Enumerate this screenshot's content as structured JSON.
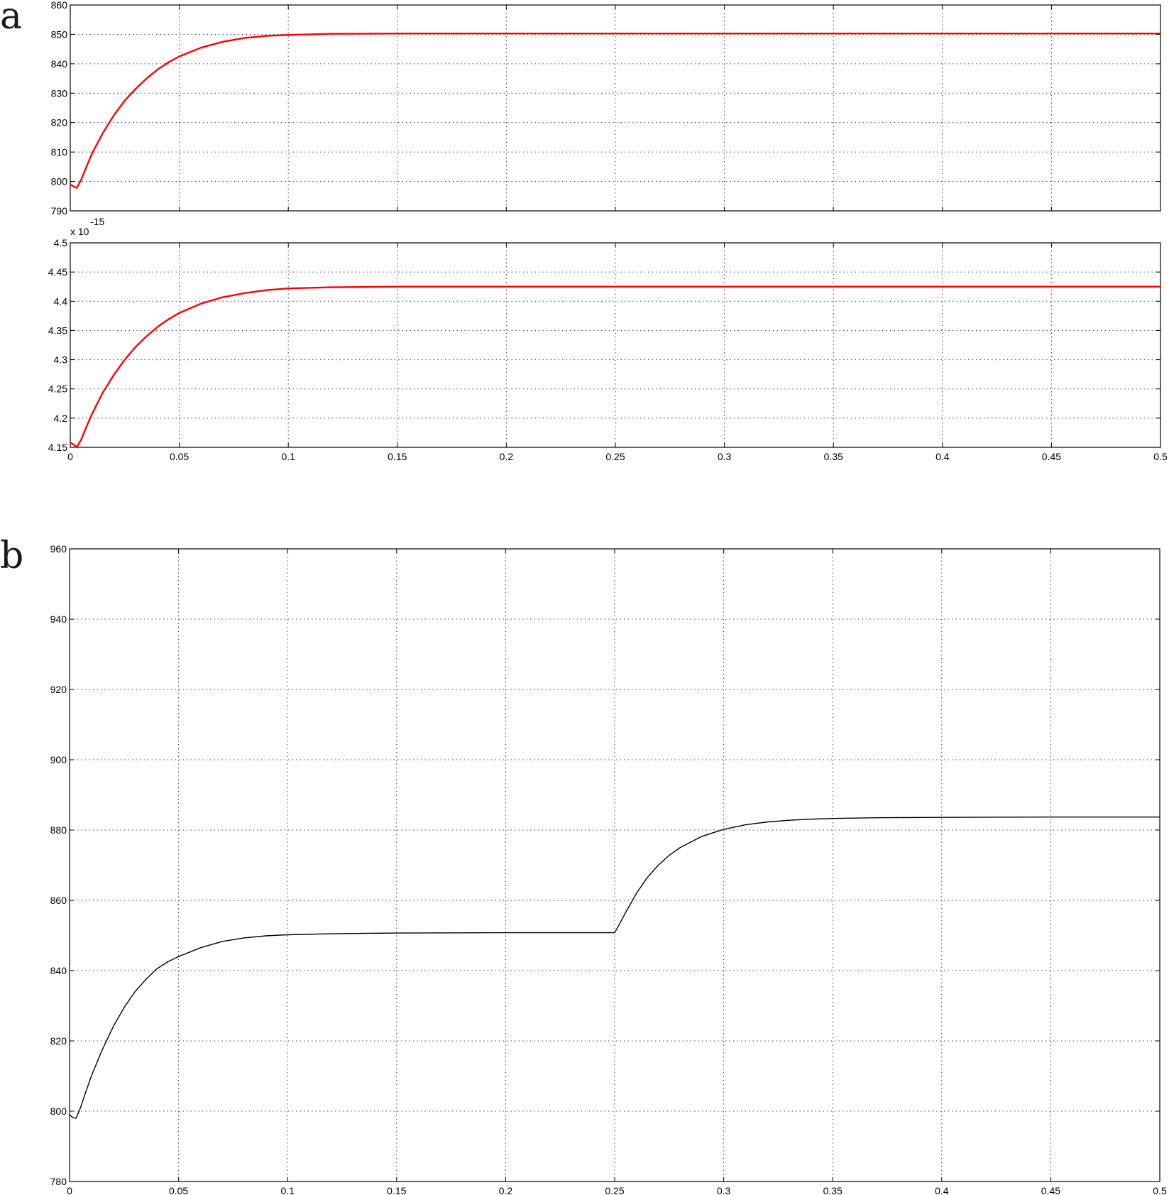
{
  "panel_labels": {
    "a": "a",
    "b": "b"
  },
  "chart_data": [
    {
      "id": "a-top",
      "type": "line",
      "title": "",
      "xlabel": "",
      "ylabel": "",
      "xlim": [
        0,
        0.5
      ],
      "ylim": [
        790,
        860
      ],
      "xticks": [
        0,
        0.05,
        0.1,
        0.15,
        0.2,
        0.25,
        0.3,
        0.35,
        0.4,
        0.45,
        0.5
      ],
      "show_xtick_labels": false,
      "yticks": [
        790,
        800,
        810,
        820,
        830,
        840,
        850,
        860
      ],
      "ytick_labels": [
        "790",
        "800",
        "810",
        "820",
        "830",
        "840",
        "850",
        "860"
      ],
      "grid": true,
      "color": "#ff0000",
      "series": [
        {
          "x": [
            0,
            0.0015,
            0.003,
            0.005,
            0.008,
            0.01,
            0.015,
            0.02,
            0.025,
            0.03,
            0.035,
            0.04,
            0.045,
            0.05,
            0.06,
            0.07,
            0.08,
            0.09,
            0.1,
            0.12,
            0.15,
            0.2,
            0.25,
            0.3,
            0.35,
            0.4,
            0.45,
            0.5
          ],
          "y": [
            799.0,
            798.3,
            797.8,
            800.5,
            806.0,
            809.5,
            816.5,
            822.5,
            827.5,
            831.5,
            835.0,
            838.0,
            840.5,
            842.5,
            845.5,
            847.5,
            848.8,
            849.5,
            849.8,
            850.2,
            850.3,
            850.3,
            850.3,
            850.3,
            850.3,
            850.3,
            850.3,
            850.3
          ]
        }
      ]
    },
    {
      "id": "a-bottom",
      "type": "line",
      "title": "",
      "xlabel": "",
      "ylabel": "",
      "exponent_label": {
        "base": "x 10",
        "power": "-15"
      },
      "xlim": [
        0,
        0.5
      ],
      "ylim": [
        4.15,
        4.5
      ],
      "xticks": [
        0,
        0.05,
        0.1,
        0.15,
        0.2,
        0.25,
        0.3,
        0.35,
        0.4,
        0.45,
        0.5
      ],
      "xtick_labels": [
        "0",
        "0.05",
        "0.1",
        "0.15",
        "0.2",
        "0.25",
        "0.3",
        "0.35",
        "0.4",
        "0.45",
        "0.5"
      ],
      "yticks": [
        4.15,
        4.2,
        4.25,
        4.3,
        4.35,
        4.4,
        4.45,
        4.5
      ],
      "ytick_labels": [
        "4.15",
        "4.2",
        "4.25",
        "4.3",
        "4.35",
        "4.4",
        "4.45",
        "4.5"
      ],
      "grid": true,
      "color": "#ff0000",
      "series": [
        {
          "x": [
            0,
            0.0015,
            0.003,
            0.005,
            0.008,
            0.01,
            0.015,
            0.02,
            0.025,
            0.03,
            0.035,
            0.04,
            0.045,
            0.05,
            0.06,
            0.07,
            0.08,
            0.09,
            0.1,
            0.12,
            0.15,
            0.2,
            0.25,
            0.3,
            0.35,
            0.4,
            0.45,
            0.5
          ],
          "y": [
            4.158,
            4.155,
            4.15,
            4.163,
            4.19,
            4.207,
            4.244,
            4.274,
            4.3,
            4.322,
            4.34,
            4.356,
            4.369,
            4.38,
            4.396,
            4.407,
            4.414,
            4.419,
            4.422,
            4.424,
            4.425,
            4.425,
            4.425,
            4.425,
            4.425,
            4.425,
            4.425,
            4.425
          ]
        }
      ]
    },
    {
      "id": "b",
      "type": "line",
      "title": "",
      "xlabel": "",
      "ylabel": "",
      "xlim": [
        0,
        0.5
      ],
      "ylim": [
        780,
        960
      ],
      "xticks": [
        0,
        0.05,
        0.1,
        0.15,
        0.2,
        0.25,
        0.3,
        0.35,
        0.4,
        0.45,
        0.5
      ],
      "xtick_labels": [
        "0",
        "0.05",
        "0.1",
        "0.15",
        "0.2",
        "0.25",
        "0.3",
        "0.35",
        "0.4",
        "0.45",
        "0.5"
      ],
      "yticks": [
        780,
        800,
        820,
        840,
        860,
        880,
        900,
        920,
        940,
        960
      ],
      "ytick_labels": [
        "780",
        "800",
        "820",
        "840",
        "860",
        "880",
        "900",
        "920",
        "940",
        "960"
      ],
      "grid": true,
      "color": "#000000",
      "series": [
        {
          "x": [
            0,
            0.0015,
            0.003,
            0.005,
            0.008,
            0.01,
            0.015,
            0.02,
            0.025,
            0.03,
            0.035,
            0.04,
            0.045,
            0.05,
            0.06,
            0.07,
            0.08,
            0.09,
            0.1,
            0.12,
            0.15,
            0.2,
            0.25,
            0.252,
            0.255,
            0.26,
            0.265,
            0.27,
            0.275,
            0.28,
            0.29,
            0.3,
            0.31,
            0.32,
            0.33,
            0.34,
            0.35,
            0.37,
            0.4,
            0.45,
            0.5
          ],
          "y": [
            799.0,
            798.2,
            798.0,
            801.0,
            806.5,
            810.0,
            817.5,
            824.0,
            829.5,
            834.0,
            837.5,
            840.5,
            842.5,
            844.0,
            846.5,
            848.3,
            849.3,
            849.9,
            850.2,
            850.5,
            850.7,
            850.8,
            850.8,
            853.0,
            856.5,
            862.0,
            866.5,
            870.0,
            872.8,
            875.0,
            878.2,
            880.2,
            881.5,
            882.3,
            882.8,
            883.1,
            883.3,
            883.5,
            883.6,
            883.7,
            883.7
          ]
        }
      ]
    }
  ]
}
